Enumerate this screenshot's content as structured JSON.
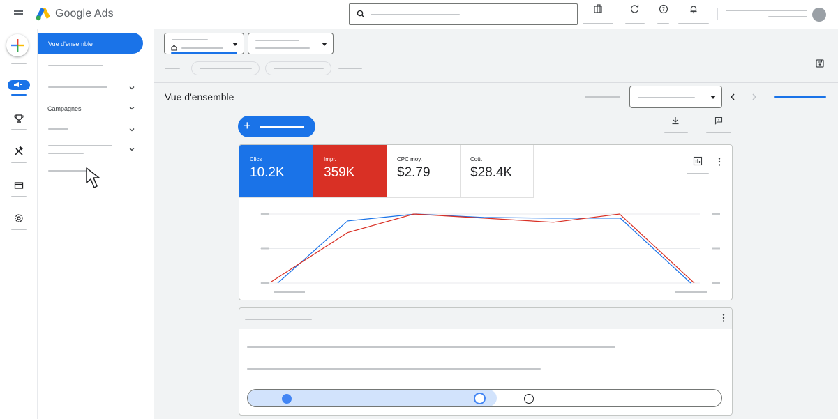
{
  "app": {
    "brand": "Google Ads"
  },
  "colors": {
    "accent": "#1a73e8",
    "impressions": "#d93025",
    "text": "#202124"
  },
  "nav": {
    "active_label": "Vue d'ensemble",
    "campaigns_label": "Campagnes"
  },
  "main": {
    "page_title": "Vue d'ensemble"
  },
  "metrics": [
    {
      "label": "Clics",
      "value": "10.2K",
      "active": true,
      "color": "#1a73e8"
    },
    {
      "label": "Impr.",
      "value": "359K",
      "active": true,
      "color": "#d93025"
    },
    {
      "label": "CPC moy.",
      "value": "$2.79",
      "active": false,
      "color": "#ffffff"
    },
    {
      "label": "Coût",
      "value": "$28.4K",
      "active": false,
      "color": "#ffffff"
    }
  ],
  "chart_data": {
    "type": "line",
    "series": [
      {
        "values": [
          0,
          0.9,
          1.0,
          0.95,
          0.94,
          0.94,
          0.0
        ]
      },
      {
        "values": [
          0.02,
          0.73,
          1.0,
          0.94,
          0.88,
          1.0,
          0.0
        ]
      }
    ],
    "ylim": [
      0,
      1.05
    ],
    "grid": true
  },
  "slider": {
    "value_fraction": 0.49
  },
  "icons": [
    "menu-icon",
    "search-icon",
    "reports-icon",
    "refresh-icon",
    "help-icon",
    "notifications-icon",
    "create-icon",
    "campaigns-icon",
    "goals-icon",
    "tools-icon",
    "billing-icon",
    "admin-icon",
    "home-icon",
    "save-icon",
    "download-icon",
    "feedback-icon",
    "chart-type-icon",
    "more-vert-icon",
    "chevron-left-icon",
    "chevron-right-icon"
  ]
}
